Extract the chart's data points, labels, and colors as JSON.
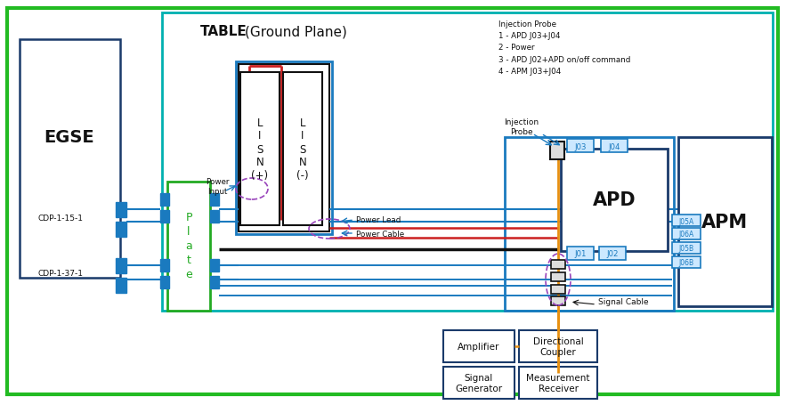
{
  "bg": "#ffffff",
  "green": "#22bb22",
  "teal": "#00b0b0",
  "blue": "#1a7abf",
  "dblue": "#1a3a6a",
  "orange": "#e89010",
  "red": "#cc2020",
  "black": "#111111",
  "purple": "#9944bb",
  "plate_green": "#22aa22",
  "egse_label": "EGSE",
  "plate_label": "P\nl\na\nt\ne",
  "lisn_plus": "L\nI\nS\nN\n(+)",
  "lisn_minus": "L\nI\nS\nN\n(-)",
  "apd_label": "APD",
  "apm_label": "APM",
  "cdp1": "CDP-1-15-1",
  "cdp2": "CDP-1-37-1",
  "table_title": "TABLE",
  "table_subtitle": "(Ground Plane)",
  "inj_legend": "Injection Probe\n1 - APD J03+J04\n2 - Power\n3 - APD J02+APD on/off command\n4 - APM J03+J04",
  "power_input": "Power\nInput",
  "power_lead": "Power Lead",
  "power_cable": "Power Cable",
  "inj_probe": "Injection\nProbe",
  "signal_cable": "Signal Cable",
  "amplifier": "Amplifier",
  "dir_coupler": "Directional\nCoupler",
  "sig_gen": "Signal\nGenerator",
  "meas_recv": "Measurement\nReceiver"
}
